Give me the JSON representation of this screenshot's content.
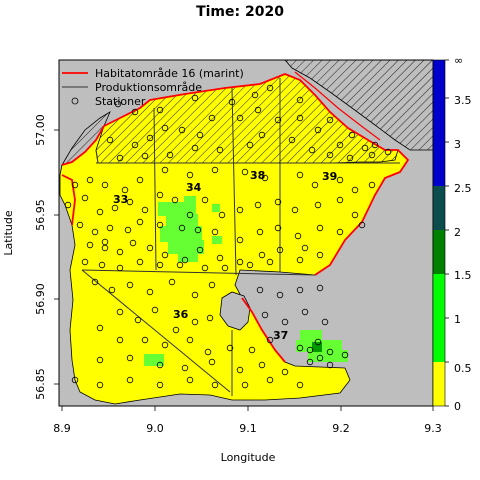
{
  "title": "Time: 2020",
  "xlabel": "Longitude",
  "ylabel": "Latitude",
  "legend": {
    "habitat": "Habitatområde 16 (marint)",
    "production": "Produktionsområde",
    "stations": "Stationer"
  },
  "x_ticks": [
    "8.9",
    "9.0",
    "9.1",
    "9.2",
    "9.3"
  ],
  "y_ticks": [
    "57.00",
    "56.95",
    "56.90",
    "56.85"
  ],
  "area_labels": [
    "33",
    "34",
    "38",
    "39",
    "36",
    "37"
  ],
  "colorbar": {
    "ticks": [
      "0",
      "0.5",
      "1",
      "1.5",
      "2",
      "2.5",
      "3",
      "3.5",
      "∞"
    ],
    "colors": [
      "#ffff00",
      "#00ff00",
      "#008000",
      "#0b4d4d",
      "#0000cc"
    ]
  },
  "colors": {
    "land": "#bebebe",
    "sea_low": "#ffff00",
    "sea_mid": "#66ff33",
    "habitat_line": "#ff0000",
    "production_line": "#333333"
  }
}
